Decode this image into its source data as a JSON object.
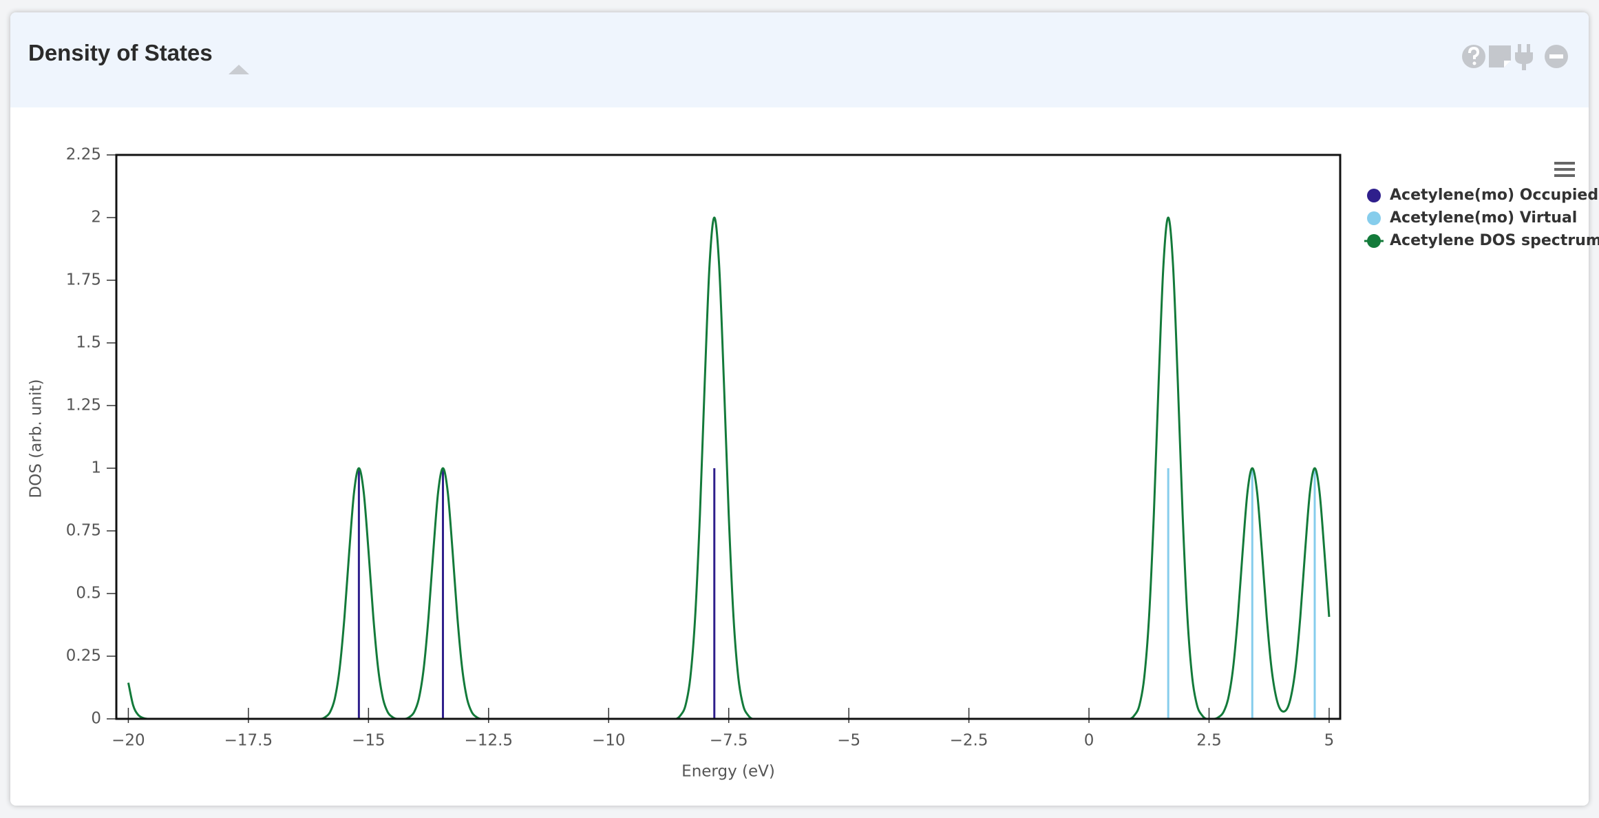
{
  "chart_data": {
    "type": "line",
    "title": "Density of States",
    "x_label": "Energy (eV)",
    "y_label": "DOS (arb. unit)",
    "xlim": [
      -20.25,
      5.23
    ],
    "ylim": [
      0,
      2.25
    ],
    "xticks": [
      {
        "value": -20,
        "label": "−20"
      },
      {
        "value": -17.5,
        "label": "−17.5"
      },
      {
        "value": -15,
        "label": "−15"
      },
      {
        "value": -12.5,
        "label": "−12.5"
      },
      {
        "value": -10,
        "label": "−10"
      },
      {
        "value": -7.5,
        "label": "−7.5"
      },
      {
        "value": -5,
        "label": "−5"
      },
      {
        "value": -2.5,
        "label": "−2.5"
      },
      0,
      2.5,
      5
    ],
    "yticks": [
      0,
      0.25,
      0.5,
      0.75,
      1,
      1.25,
      1.5,
      1.75,
      2,
      2.25
    ],
    "series": [
      {
        "name": "Acetylene(mo) Occupied",
        "type": "stem",
        "color": "#2f1f8c",
        "x": [
          -15.2,
          -13.45,
          -7.8
        ],
        "values": [
          1,
          1,
          1
        ]
      },
      {
        "name": "Acetylene(mo) Virtual",
        "type": "stem",
        "color": "#86cdec",
        "x": [
          1.65,
          3.4,
          4.7
        ],
        "values": [
          1,
          1,
          1
        ]
      },
      {
        "name": "Acetylene DOS spectrum",
        "type": "line",
        "color": "#137a3a",
        "x": [
          -20,
          -19.9,
          -19.8,
          -19.7,
          -19.6,
          -16,
          -15.9,
          -15.8,
          -15.7,
          -15.6,
          -15.5,
          -15.4,
          -15.3,
          -15.2,
          -15.1,
          -15,
          -14.9,
          -14.8,
          -14.7,
          -14.6,
          -14.5,
          -14.4,
          -14.25,
          -14.15,
          -14.05,
          -13.95,
          -13.85,
          -13.75,
          -13.65,
          -13.55,
          -13.45,
          -13.35,
          -13.25,
          -13.15,
          -13.05,
          -12.95,
          -12.85,
          -12.75,
          -12.65,
          -8.6,
          -8.5,
          -8.4,
          -8.3,
          -8.2,
          -8.1,
          -8,
          -7.9,
          -7.8,
          -7.7,
          -7.6,
          -7.5,
          -7.4,
          -7.3,
          -7.2,
          -7.1,
          -7,
          0.85,
          0.95,
          1.05,
          1.15,
          1.25,
          1.35,
          1.45,
          1.55,
          1.65,
          1.75,
          1.85,
          1.95,
          2.05,
          2.15,
          2.25,
          2.35,
          2.45,
          2.6,
          2.7,
          2.8,
          2.9,
          3,
          3.1,
          3.2,
          3.3,
          3.4,
          3.5,
          3.6,
          3.7,
          3.8,
          3.9,
          4,
          4.05,
          4.1,
          4.2,
          4.3,
          4.4,
          4.5,
          4.6,
          4.7,
          4.8,
          4.9,
          5
        ],
        "values": [
          0.144,
          0.054,
          0.017,
          0.004,
          0,
          0,
          0.007,
          0.027,
          0.082,
          0.202,
          0.407,
          0.67,
          0.905,
          1,
          0.905,
          0.67,
          0.407,
          0.202,
          0.082,
          0.027,
          0.007,
          0,
          0,
          0.007,
          0.027,
          0.082,
          0.202,
          0.407,
          0.67,
          0.905,
          1,
          0.905,
          0.67,
          0.407,
          0.202,
          0.082,
          0.027,
          0.007,
          0,
          0,
          0.015,
          0.054,
          0.164,
          0.404,
          0.814,
          1.341,
          1.81,
          2,
          1.81,
          1.341,
          0.814,
          0.404,
          0.164,
          0.054,
          0.015,
          0,
          0,
          0.015,
          0.054,
          0.164,
          0.404,
          0.814,
          1.341,
          1.81,
          2,
          1.81,
          1.341,
          0.814,
          0.404,
          0.164,
          0.054,
          0.015,
          0,
          0,
          0.007,
          0.027,
          0.082,
          0.202,
          0.407,
          0.67,
          0.905,
          1,
          0.905,
          0.67,
          0.407,
          0.202,
          0.084,
          0.034,
          0.029,
          0.034,
          0.084,
          0.202,
          0.407,
          0.67,
          0.905,
          1,
          0.905,
          0.67,
          0.407
        ]
      }
    ]
  }
}
